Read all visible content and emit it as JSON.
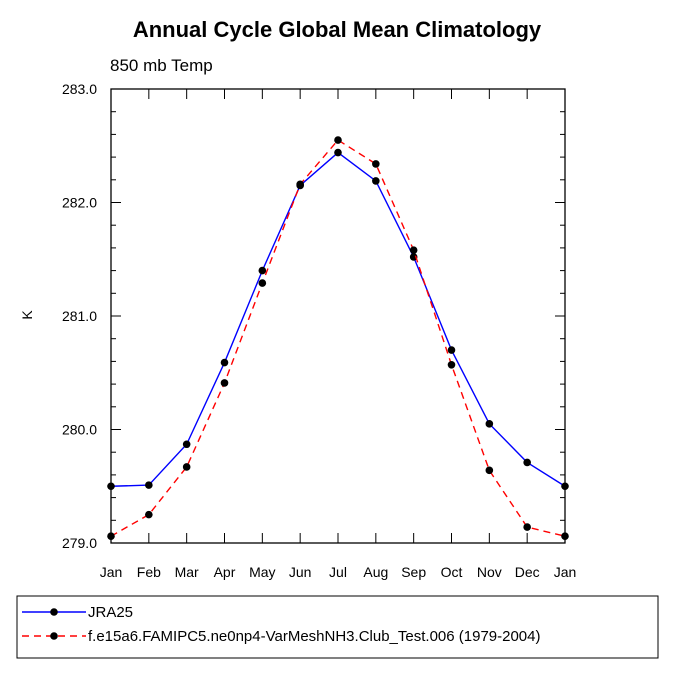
{
  "chart_data": {
    "type": "line",
    "title": "Annual Cycle Global Mean Climatology",
    "subtitle": "850 mb Temp",
    "xlabel": "",
    "ylabel": "K",
    "categories": [
      "Jan",
      "Feb",
      "Mar",
      "Apr",
      "May",
      "Jun",
      "Jul",
      "Aug",
      "Sep",
      "Oct",
      "Nov",
      "Dec",
      "Jan"
    ],
    "ylim": [
      279.0,
      283.0
    ],
    "yticks": [
      "279.0",
      "280.0",
      "281.0",
      "282.0",
      "283.0"
    ],
    "grid": false,
    "legend_position": "bottom",
    "series": [
      {
        "name": "JRA25",
        "color": "#0000ff",
        "dash": "solid",
        "marker": "filled-circle",
        "values": [
          279.5,
          279.51,
          279.87,
          280.59,
          281.4,
          282.15,
          282.44,
          282.19,
          281.52,
          280.7,
          280.05,
          279.71,
          279.5
        ]
      },
      {
        "name": "f.e15a6.FAMIPC5.ne0np4-VarMeshNH3.Club_Test.006 (1979-2004)",
        "color": "#ff0000",
        "dash": "dashed",
        "marker": "filled-circle",
        "values": [
          279.06,
          279.25,
          279.67,
          280.41,
          281.29,
          282.16,
          282.55,
          282.34,
          281.58,
          280.57,
          279.64,
          279.14,
          279.06
        ]
      }
    ]
  }
}
